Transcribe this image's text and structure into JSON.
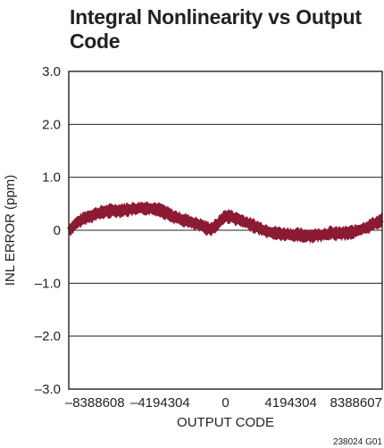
{
  "chart_data": {
    "type": "line",
    "title": "Integral Nonlinearity vs Output Code",
    "xlabel": "OUTPUT CODE",
    "ylabel": "INL ERROR (ppm)",
    "xlim": [
      -10066330,
      10066330
    ],
    "ylim": [
      -3.0,
      3.0
    ],
    "x_ticks": [
      -8388608,
      -4194304,
      0,
      4194304,
      8388607
    ],
    "x_tick_labels": [
      "–8388608",
      "–4194304",
      "0",
      "4194304",
      "8388607"
    ],
    "y_ticks": [
      3.0,
      2.0,
      1.0,
      0,
      -1.0,
      -2.0,
      -3.0
    ],
    "y_tick_labels": [
      "3.0",
      "2.0",
      "1.0",
      "0",
      "–1.0",
      "–2.0",
      "–3.0"
    ],
    "grid": "horizontal",
    "series": [
      {
        "color": "#8b1a32",
        "x": [
          -10066330,
          -9227468,
          -8388608,
          -7549747,
          -6710886,
          -5872026,
          -5033165,
          -4194304,
          -3355443,
          -2516582,
          -1677722,
          -838861,
          0,
          838861,
          1677722,
          2516582,
          3355443,
          4194304,
          5033165,
          5872026,
          6710886,
          7549747,
          8388607,
          9227468,
          10066330
        ],
        "y": [
          0.0,
          0.2,
          0.3,
          0.36,
          0.38,
          0.4,
          0.42,
          0.38,
          0.26,
          0.18,
          0.1,
          0.04,
          0.26,
          0.2,
          0.1,
          0.0,
          -0.06,
          -0.08,
          -0.1,
          -0.1,
          -0.06,
          -0.06,
          -0.02,
          0.08,
          0.2
        ]
      }
    ],
    "footnote": "238024 G01"
  }
}
